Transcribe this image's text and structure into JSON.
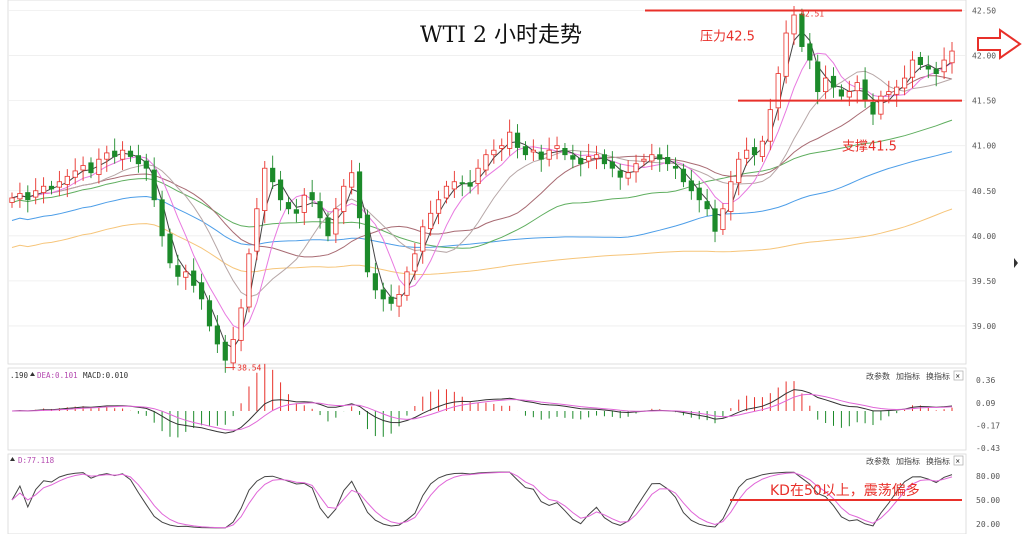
{
  "chart_data": {
    "type": "candlestick",
    "title": "WTI 2 小时走势",
    "main": {
      "y_ticks": [
        "42.50",
        "42.00",
        "41.50",
        "41.00",
        "40.50",
        "40.00",
        "39.50",
        "39.00"
      ],
      "ylim": [
        38.6,
        42.55
      ],
      "low_label": "38.54",
      "high_label": "42.51",
      "resistance": {
        "label": "压力42.5",
        "value": 42.5
      },
      "support": {
        "label": "支撑41.5",
        "value": 41.5
      },
      "close": [
        40.42,
        40.47,
        40.4,
        40.5,
        40.55,
        40.52,
        40.6,
        40.66,
        40.72,
        40.78,
        40.7,
        40.85,
        40.92,
        40.88,
        40.95,
        40.88,
        40.8,
        40.75,
        40.4,
        40.0,
        39.7,
        39.55,
        39.6,
        39.45,
        39.3,
        39.0,
        38.8,
        38.62,
        38.85,
        39.2,
        39.8,
        40.3,
        40.75,
        40.6,
        40.4,
        40.3,
        40.25,
        40.45,
        40.4,
        40.2,
        40.0,
        40.3,
        40.55,
        40.7,
        40.2,
        39.6,
        39.4,
        39.3,
        39.25,
        39.35,
        39.6,
        39.8,
        40.1,
        40.25,
        40.4,
        40.55,
        40.6,
        40.58,
        40.55,
        40.75,
        40.9,
        40.95,
        41.0,
        41.15,
        40.98,
        40.9,
        40.95,
        40.85,
        40.95,
        41.0,
        40.9,
        40.85,
        40.8,
        40.88,
        40.9,
        40.8,
        40.75,
        40.65,
        40.7,
        40.8,
        40.85,
        40.9,
        40.85,
        40.8,
        40.75,
        40.6,
        40.5,
        40.4,
        40.3,
        40.05,
        40.3,
        40.6,
        40.85,
        40.95,
        40.9,
        41.05,
        41.4,
        41.8,
        42.25,
        42.45,
        42.1,
        41.95,
        41.6,
        41.75,
        41.65,
        41.55,
        41.6,
        41.7,
        41.5,
        41.35,
        41.55,
        41.6,
        41.65,
        41.75,
        41.95,
        41.9,
        41.85,
        41.8,
        41.95,
        42.05
      ],
      "ma_short": {
        "color": "#444444"
      },
      "ma_mid": {
        "color": "#e879e0"
      },
      "ma_long1": {
        "color": "#b7a7a7"
      },
      "ma_long2": {
        "color": "#a86b73"
      },
      "ma_long3": {
        "color": "#5fae5f"
      },
      "ma_long4": {
        "color": "#4d9ee8"
      },
      "ma_long5": {
        "color": "#f6c57a"
      }
    },
    "macd": {
      "label_left": ".190",
      "dea_label": "DEA:0.101",
      "macd_label": "MACD:0.010",
      "y_ticks": [
        "0.36",
        "0.09",
        "-0.17",
        "-0.43"
      ],
      "buttons": [
        "改参数",
        "加指标",
        "换指标"
      ]
    },
    "kd": {
      "d_label": "D:77.118",
      "y_ticks": [
        "80.00",
        "50.00",
        "20.00"
      ],
      "buttons": [
        "改参数",
        "加指标",
        "换指标"
      ],
      "annotation": "KD在50以上，震荡偏多",
      "level": 50
    },
    "colors": {
      "up": "#e8302a",
      "down": "#1c8a2a",
      "line": "#e8302a"
    }
  }
}
